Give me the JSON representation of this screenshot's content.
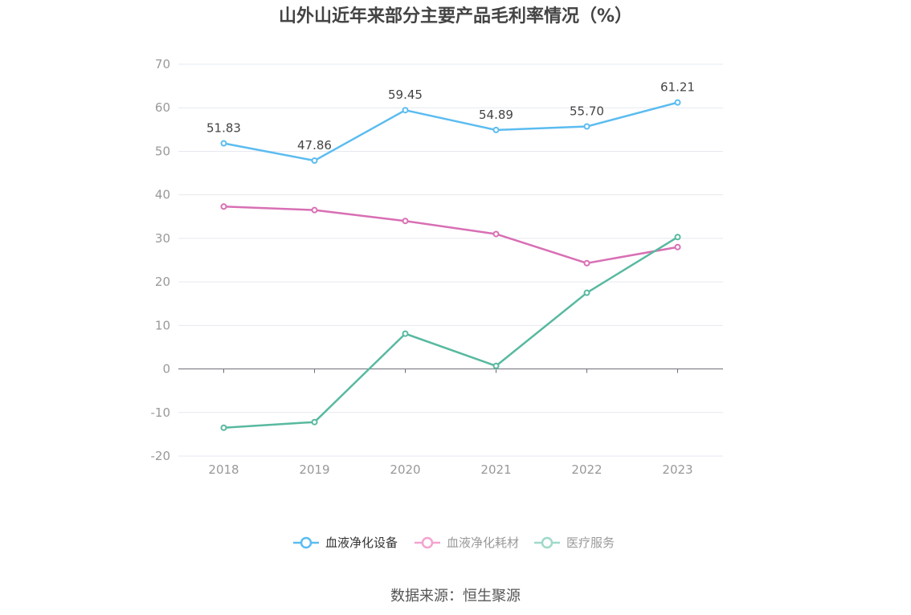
{
  "chart_data": {
    "type": "line",
    "title": "山外山近年来部分主要产品毛利率情况（%）",
    "categories": [
      "2018",
      "2019",
      "2020",
      "2021",
      "2022",
      "2023"
    ],
    "ylim": [
      -20,
      70
    ],
    "yticks": [
      -20,
      -10,
      0,
      10,
      20,
      30,
      40,
      50,
      60,
      70
    ],
    "grid": true,
    "legend_position": "bottom-center",
    "series": [
      {
        "name": "血液净化设备",
        "color": "#5bbcf0",
        "values": [
          51.83,
          47.86,
          59.45,
          54.89,
          55.7,
          61.21
        ],
        "labels": [
          "51.83",
          "47.86",
          "59.45",
          "54.89",
          "55.70",
          "61.21"
        ]
      },
      {
        "name": "血液净化耗材",
        "color": "#d86fb4",
        "values": [
          37.3,
          36.5,
          34.0,
          31.0,
          24.3,
          28.0
        ]
      },
      {
        "name": "医疗服务",
        "color": "#58b9a0",
        "values": [
          -13.5,
          -12.2,
          8.1,
          0.7,
          17.5,
          30.3
        ]
      }
    ]
  },
  "legend_colors": [
    "#5bbcf0",
    "#f3a3cf",
    "#9fd9c9"
  ],
  "source": "数据来源：恒生聚源"
}
